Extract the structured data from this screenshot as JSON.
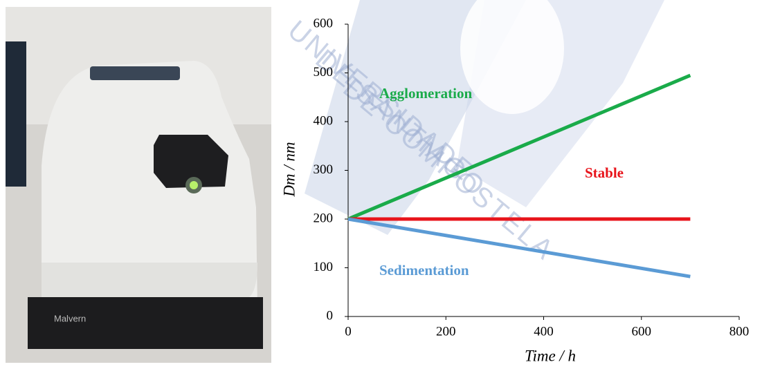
{
  "photo": {
    "label": "Malvern"
  },
  "watermark": [
    "UNIVERSIDADE",
    "DE SANTIAGO",
    "DE COMPOSTELA"
  ],
  "chart_data": {
    "type": "line",
    "x_label": "Time / h",
    "y_label": "Dm / nm",
    "x": [
      0,
      700
    ],
    "series": [
      {
        "name": "Agglomeration",
        "color": "#1aab4a",
        "values": [
          200,
          495
        ]
      },
      {
        "name": "Stable",
        "color": "#e8141b",
        "values": [
          200,
          200
        ]
      },
      {
        "name": "Sedimentation",
        "color": "#5b9bd5",
        "values": [
          200,
          82
        ]
      }
    ],
    "xlim": [
      0,
      800
    ],
    "xticks": [
      0,
      200,
      400,
      600,
      800
    ],
    "ylim": [
      0,
      600
    ],
    "yticks": [
      0,
      100,
      200,
      300,
      400,
      500,
      600
    ],
    "grid": false
  }
}
